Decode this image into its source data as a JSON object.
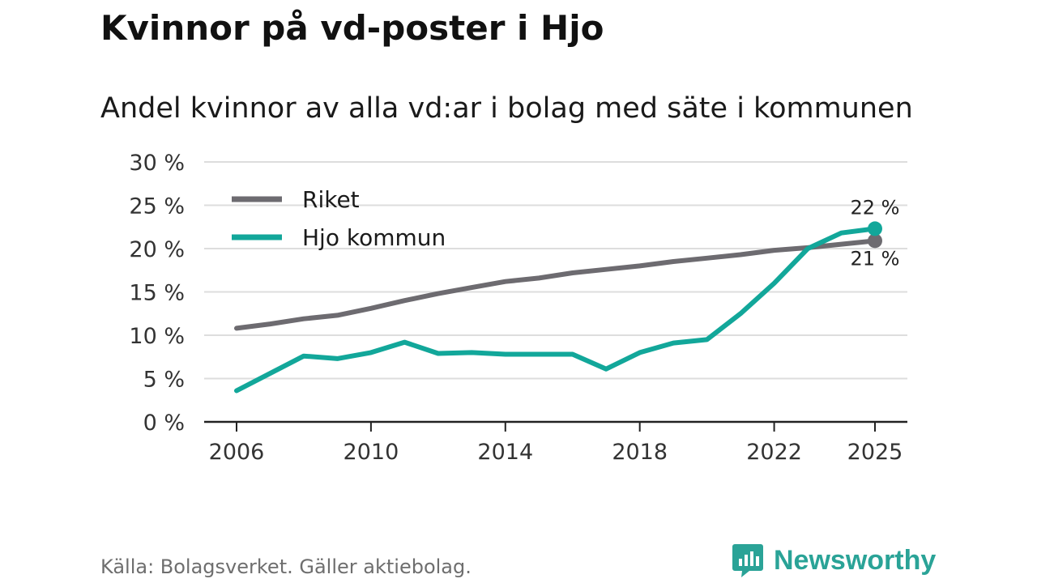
{
  "header": {
    "title": "Kvinnor på vd-poster i Hjo",
    "subtitle": "Andel kvinnor av alla vd:ar i bolag med säte i kommunen"
  },
  "footer": {
    "source": "Källa: Bolagsverket. Gäller aktiebolag.",
    "brand": "Newsworthy"
  },
  "icons": {
    "brand_logo": "bar-chart-speech-bubble-icon"
  },
  "colors": {
    "riket": "#6d6b70",
    "hjo": "#12a79a",
    "grid": "#dddddd",
    "axis": "#222222",
    "brand": "#2aa397"
  },
  "chart_data": {
    "type": "line",
    "title": "Kvinnor på vd-poster i Hjo",
    "subtitle": "Andel kvinnor av alla vd:ar i bolag med säte i kommunen",
    "xlabel": "",
    "ylabel": "",
    "ylim": [
      0,
      30
    ],
    "yticks": [
      0,
      5,
      10,
      15,
      20,
      25,
      30
    ],
    "ytick_labels": [
      "0 %",
      "5 %",
      "10 %",
      "15 %",
      "20 %",
      "25 %",
      "30 %"
    ],
    "xlim": [
      2006,
      2025
    ],
    "xticks": [
      2006,
      2010,
      2014,
      2018,
      2022,
      2025
    ],
    "xtick_labels": [
      "2006",
      "2010",
      "2014",
      "2018",
      "2022",
      "2025"
    ],
    "x": [
      2006,
      2007,
      2008,
      2009,
      2010,
      2011,
      2012,
      2013,
      2014,
      2015,
      2016,
      2017,
      2018,
      2019,
      2020,
      2021,
      2022,
      2023,
      2024,
      2025
    ],
    "grid": true,
    "legend_position": "top-left",
    "series": [
      {
        "name": "Riket",
        "color": "#6d6b70",
        "values": [
          10.8,
          11.3,
          11.9,
          12.3,
          13.1,
          14.0,
          14.8,
          15.5,
          16.2,
          16.6,
          17.2,
          17.6,
          18.0,
          18.5,
          18.9,
          19.3,
          19.8,
          20.1,
          20.5,
          20.9
        ],
        "end_label": "21 %"
      },
      {
        "name": "Hjo kommun",
        "color": "#12a79a",
        "values": [
          3.6,
          5.6,
          7.6,
          7.3,
          8.0,
          9.2,
          7.9,
          8.0,
          7.8,
          7.8,
          7.8,
          6.1,
          8.0,
          9.1,
          9.5,
          12.5,
          16.0,
          20.0,
          21.8,
          22.3
        ],
        "end_label": "22 %"
      }
    ]
  }
}
